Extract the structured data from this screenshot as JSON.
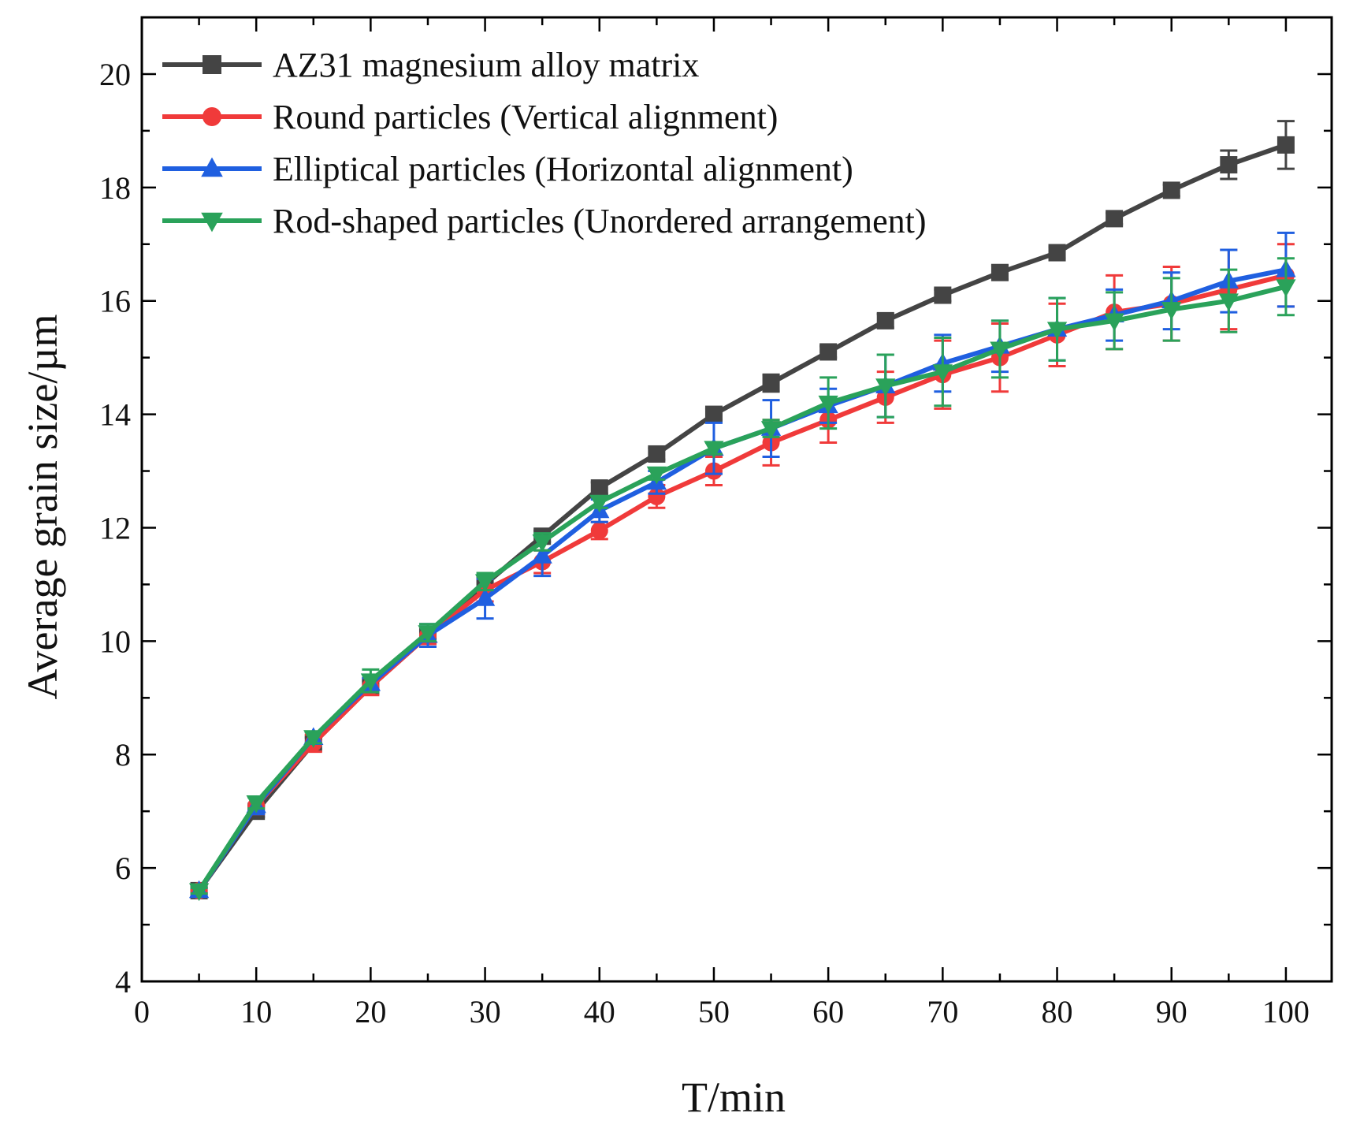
{
  "chart_data": {
    "type": "line",
    "title": "",
    "xlabel": "T/min",
    "ylabel": "Average grain size/µm",
    "xlim": [
      0,
      104
    ],
    "ylim": [
      4,
      21
    ],
    "xticks": [
      0,
      10,
      20,
      30,
      40,
      50,
      60,
      70,
      80,
      90,
      100
    ],
    "yticks": [
      4,
      6,
      8,
      10,
      12,
      14,
      16,
      18,
      20
    ],
    "x": [
      5,
      10,
      15,
      20,
      25,
      30,
      35,
      40,
      45,
      50,
      55,
      60,
      65,
      70,
      75,
      80,
      85,
      90,
      95,
      100
    ],
    "legend_position": "top-left",
    "series": [
      {
        "name": "AZ31 magnesium alloy matrix",
        "color": "#444444",
        "marker": "square",
        "values": [
          5.6,
          7.0,
          8.2,
          9.2,
          10.1,
          11.0,
          11.85,
          12.7,
          13.3,
          14.0,
          14.55,
          15.1,
          15.65,
          16.1,
          16.5,
          16.85,
          17.45,
          17.95,
          18.4,
          18.75
        ],
        "errors": [
          0.05,
          0.1,
          0.1,
          0.1,
          0.1,
          0.1,
          0.1,
          0.1,
          0.1,
          0.1,
          0.15,
          0.1,
          0.12,
          0.1,
          0.12,
          0.1,
          0.1,
          0.1,
          0.25,
          0.42
        ]
      },
      {
        "name": "Round particles (Vertical alignment)",
        "color": "#f03a3a",
        "marker": "circle",
        "values": [
          5.6,
          7.1,
          8.2,
          9.2,
          10.1,
          10.9,
          11.4,
          11.95,
          12.55,
          13.0,
          13.5,
          13.9,
          14.3,
          14.7,
          15.0,
          15.4,
          15.8,
          15.95,
          16.2,
          16.45
        ],
        "errors": [
          0.05,
          0.15,
          0.15,
          0.15,
          0.15,
          0.2,
          0.2,
          0.15,
          0.2,
          0.25,
          0.4,
          0.4,
          0.45,
          0.6,
          0.6,
          0.55,
          0.65,
          0.65,
          0.7,
          0.55
        ]
      },
      {
        "name": "Elliptical particles (Horizontal alignment)",
        "color": "#1f5fe0",
        "marker": "triangle-up",
        "values": [
          5.6,
          7.1,
          8.3,
          9.25,
          10.1,
          10.75,
          11.5,
          12.3,
          12.8,
          13.4,
          13.75,
          14.15,
          14.5,
          14.9,
          15.2,
          15.5,
          15.75,
          16.0,
          16.35,
          16.55
        ],
        "errors": [
          0.05,
          0.15,
          0.1,
          0.1,
          0.2,
          0.35,
          0.35,
          0.2,
          0.2,
          0.45,
          0.5,
          0.3,
          0.55,
          0.5,
          0.45,
          0.55,
          0.45,
          0.5,
          0.55,
          0.65
        ]
      },
      {
        "name": "Rod-shaped particles (Unordered arrangement)",
        "color": "#2aa25a",
        "marker": "triangle-down",
        "values": [
          5.6,
          7.15,
          8.3,
          9.3,
          10.15,
          11.05,
          11.75,
          12.45,
          12.95,
          13.4,
          13.75,
          14.2,
          14.5,
          14.75,
          15.15,
          15.5,
          15.65,
          15.85,
          16.0,
          16.25
        ],
        "errors": [
          0.05,
          0.1,
          0.1,
          0.2,
          0.15,
          0.15,
          0.15,
          0.1,
          0.1,
          0.1,
          0.15,
          0.45,
          0.55,
          0.6,
          0.5,
          0.55,
          0.5,
          0.55,
          0.55,
          0.5
        ]
      }
    ]
  }
}
